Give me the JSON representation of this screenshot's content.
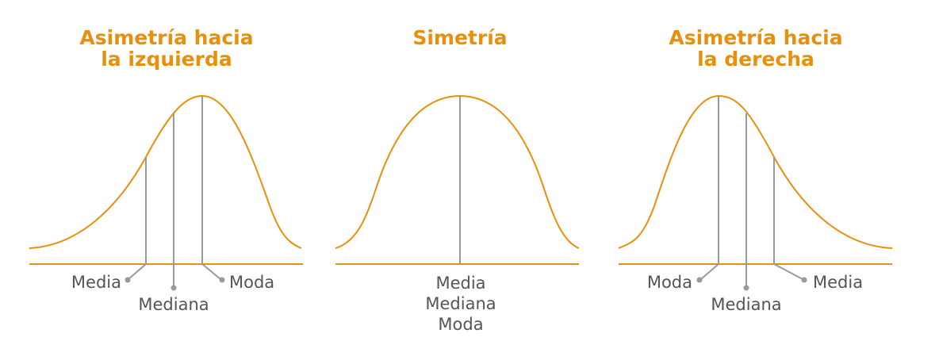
{
  "colors": {
    "accent": "#E8900E",
    "line": "#9a9a9a",
    "text": "#555555"
  },
  "panels": {
    "left": {
      "title_line1": "Asimetría hacia",
      "title_line2": "la izquierda",
      "labels": {
        "media": "Media",
        "mediana": "Mediana",
        "moda": "Moda"
      }
    },
    "center": {
      "title": "Simetría",
      "labels": {
        "media": "Media",
        "mediana": "Mediana",
        "moda": "Moda"
      }
    },
    "right": {
      "title_line1": "Asimetría hacia",
      "title_line2": "la derecha",
      "labels": {
        "moda": "Moda",
        "mediana": "Mediana",
        "media": "Media"
      }
    }
  }
}
